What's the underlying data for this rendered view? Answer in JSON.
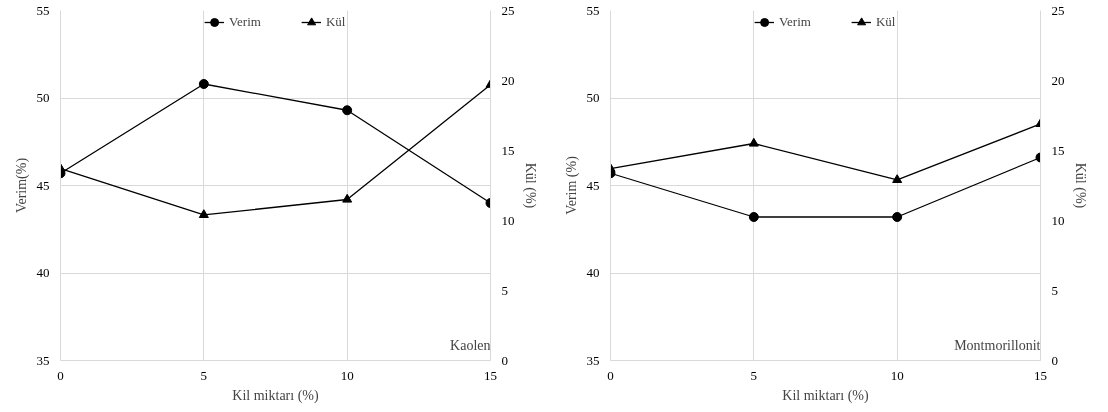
{
  "chart_data": [
    {
      "type": "line",
      "xlabel": "Kil miktarı (%)",
      "ylabel": "Verim(%)",
      "y2label": "Kül (%)",
      "annotations": [
        "Kaolen"
      ],
      "x": [
        0,
        5,
        10,
        15
      ],
      "xlim": [
        0,
        15
      ],
      "xticks": [
        0,
        5,
        10,
        15
      ],
      "ylim": [
        35,
        55
      ],
      "yticks": [
        35,
        40,
        45,
        50,
        55
      ],
      "y2lim": [
        0,
        25
      ],
      "y2ticks": [
        0,
        5,
        10,
        15,
        20,
        25
      ],
      "grid": true,
      "legend": "top",
      "line_style": "solid",
      "series": [
        {
          "name": "Verim",
          "color": "#000000",
          "marker": "circle",
          "values": [
            45.7,
            50.8,
            49.3,
            44.0
          ]
        },
        {
          "name": "Kül",
          "color": "#000000",
          "marker": "triangle",
          "axis": "y2",
          "values": [
            13.7,
            10.4,
            11.5,
            19.7
          ]
        }
      ]
    },
    {
      "type": "line",
      "xlabel": "Kil miktarı (%)",
      "ylabel": "Verim (%)",
      "y2label": "Kül (%)",
      "annotations": [
        "Montmorillonit"
      ],
      "x": [
        0,
        5,
        10,
        15
      ],
      "xlim": [
        0,
        15
      ],
      "xticks": [
        0,
        5,
        10,
        15
      ],
      "ylim": [
        35,
        55
      ],
      "yticks": [
        35,
        40,
        45,
        50,
        55
      ],
      "y2lim": [
        0,
        25
      ],
      "y2ticks": [
        0,
        5,
        10,
        15,
        20,
        25
      ],
      "grid": true,
      "legend": "top",
      "line_style": "solid",
      "series": [
        {
          "name": "Verim",
          "color": "#000000",
          "marker": "circle",
          "values": [
            45.7,
            43.2,
            43.2,
            46.6
          ]
        },
        {
          "name": "Kül",
          "color": "#000000",
          "marker": "triangle",
          "axis": "y2",
          "values": [
            13.7,
            15.5,
            12.9,
            16.9
          ]
        }
      ]
    }
  ]
}
